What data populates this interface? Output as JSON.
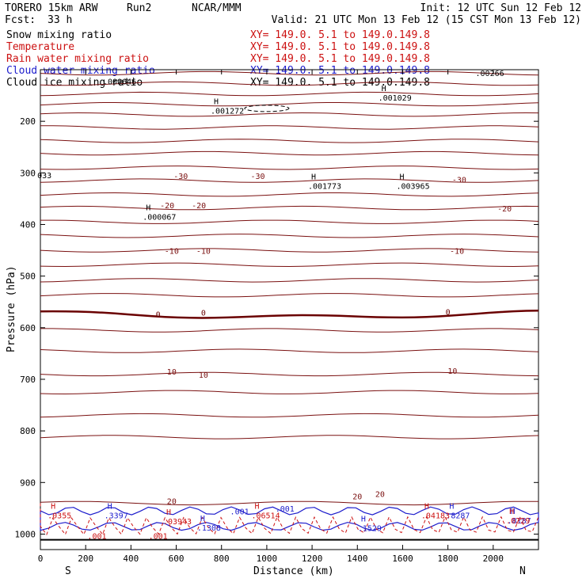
{
  "header": {
    "model": "TORERO  15km ARW",
    "run": "Run2",
    "org": "NCAR/MMM",
    "init": "Init: 12 UTC Sun 12 Feb 12",
    "fcst_label": "Fcst:",
    "fcst_value": "33 h",
    "valid": "Valid: 21 UTC Mon 13 Feb 12 (15 CST Mon 13 Feb 12)"
  },
  "colors": {
    "black": "#000000",
    "temperature": "#7a1010",
    "temperature_zero": "#6a0000",
    "rain": "#cc1111",
    "cloud_water": "#1c1ccc",
    "cloud_ice": "#000000"
  },
  "legend": [
    {
      "name": "Snow mixing ratio",
      "xy": "XY= 149.0.  5.1 to 149.0.149.8",
      "color": "#000000"
    },
    {
      "name": "Temperature",
      "xy": "XY= 149.0.  5.1 to 149.0.149.8",
      "color": "#cc1111"
    },
    {
      "name": "Rain water mixing ratio",
      "xy": "XY= 149.0.  5.1 to 149.0.149.8",
      "color": "#cc1111"
    },
    {
      "name": "Cloud water mixing ratio",
      "xy": "XY= 149.0.  5.1 to 149.0.149.8",
      "color": "#1c1ccc"
    },
    {
      "name": "Cloud ice mixing ratio",
      "xy": "XY= 149.0.  5.1 to 149.0.149.8",
      "color": "#000000"
    }
  ],
  "chart_data": {
    "type": "cross-section contour",
    "xlabel": "Distance (km)",
    "ylabel": "Pressure (hPa)",
    "xlim": [
      0,
      2200
    ],
    "ylim": [
      1030,
      100
    ],
    "xticks": [
      0,
      200,
      400,
      600,
      800,
      1000,
      1200,
      1400,
      1600,
      1800,
      2000
    ],
    "yticks": [
      200,
      300,
      400,
      500,
      600,
      700,
      800,
      900,
      1000
    ],
    "x_end_labels": {
      "left": "S",
      "right": "N"
    },
    "surface_pressure": 1011,
    "temperature_isotherms": [
      {
        "value": -50,
        "pressure": 107
      },
      {
        "value": -50,
        "pressure": 127
      },
      {
        "value": -45,
        "pressure": 147
      },
      {
        "value": -45,
        "pressure": 167
      },
      {
        "value": -40,
        "pressure": 187
      },
      {
        "value": -40,
        "pressure": 212
      },
      {
        "value": -35,
        "pressure": 238
      },
      {
        "value": -35,
        "pressure": 262
      },
      {
        "value": -30,
        "pressure": 290
      },
      {
        "value": -30,
        "pressure": 315,
        "labeled": true
      },
      {
        "value": -25,
        "pressure": 342
      },
      {
        "value": -20,
        "pressure": 368,
        "labeled": true
      },
      {
        "value": -15,
        "pressure": 395
      },
      {
        "value": -15,
        "pressure": 422
      },
      {
        "value": -10,
        "pressure": 450,
        "labeled": true
      },
      {
        "value": -5,
        "pressure": 478
      },
      {
        "value": -5,
        "pressure": 508
      },
      {
        "value": 0,
        "pressure": 537
      },
      {
        "value": 0,
        "pressure": 570,
        "labeled": true,
        "bold": true
      },
      {
        "value": 5,
        "pressure": 605
      },
      {
        "value": 5,
        "pressure": 645
      },
      {
        "value": 10,
        "pressure": 690,
        "labeled": true
      },
      {
        "value": 15,
        "pressure": 725
      },
      {
        "value": 15,
        "pressure": 770
      },
      {
        "value": 20,
        "pressure": 812
      },
      {
        "value": 20,
        "pressure": 940,
        "labeled": true
      }
    ],
    "contour_labels": [
      {
        "text": "-30",
        "x": 620,
        "p": 307,
        "color": "#7a1010"
      },
      {
        "text": "-30",
        "x": 960,
        "p": 307,
        "color": "#7a1010"
      },
      {
        "text": "-30",
        "x": 1850,
        "p": 314,
        "color": "#7a1010"
      },
      {
        "text": "-20",
        "x": 560,
        "p": 364,
        "color": "#7a1010"
      },
      {
        "text": "-20",
        "x": 700,
        "p": 364,
        "color": "#7a1010"
      },
      {
        "text": "-20",
        "x": 2050,
        "p": 370,
        "color": "#7a1010"
      },
      {
        "text": "-10",
        "x": 580,
        "p": 452,
        "color": "#7a1010"
      },
      {
        "text": "-10",
        "x": 720,
        "p": 452,
        "color": "#7a1010"
      },
      {
        "text": "-10",
        "x": 1840,
        "p": 452,
        "color": "#7a1010"
      },
      {
        "text": "0",
        "x": 520,
        "p": 575,
        "color": "#6a0000"
      },
      {
        "text": "0",
        "x": 720,
        "p": 572,
        "color": "#6a0000"
      },
      {
        "text": "0",
        "x": 1800,
        "p": 570,
        "color": "#6a0000"
      },
      {
        "text": "10",
        "x": 580,
        "p": 686,
        "color": "#7a1010"
      },
      {
        "text": "10",
        "x": 720,
        "p": 692,
        "color": "#7a1010"
      },
      {
        "text": "10",
        "x": 1820,
        "p": 685,
        "color": "#7a1010"
      },
      {
        "text": "20",
        "x": 580,
        "p": 937,
        "color": "#7a1010"
      },
      {
        "text": "20",
        "x": 1400,
        "p": 928,
        "color": "#7a1010"
      },
      {
        "text": "20",
        "x": 1500,
        "p": 923,
        "color": "#7a1010"
      },
      {
        "text": ".001",
        "x": 880,
        "p": 957,
        "color": "#1c1ccc"
      },
      {
        "text": ".001",
        "x": 1080,
        "p": 952,
        "color": "#1c1ccc"
      },
      {
        "text": ".001",
        "x": 250,
        "p": 1005,
        "color": "#cc1111"
      },
      {
        "text": ".001",
        "x": 520,
        "p": 1005,
        "color": "#cc1111"
      },
      {
        "text": ".000646",
        "x": 350,
        "p": 124,
        "color": "#000000"
      },
      {
        "text": "033",
        "x": 18,
        "p": 306,
        "color": "#000000"
      }
    ],
    "maxima": [
      {
        "text": ".00266",
        "x": 1950,
        "p": 109,
        "color": "#000000",
        "mark": false
      },
      {
        "text": ".001272",
        "x": 780,
        "p": 182,
        "color": "#000000"
      },
      {
        "text": ".001029",
        "x": 1520,
        "p": 157,
        "color": "#000000"
      },
      {
        "text": ".001773",
        "x": 1210,
        "p": 328,
        "color": "#000000"
      },
      {
        "text": ".003965",
        "x": 1600,
        "p": 328,
        "color": "#000000"
      },
      {
        "text": ".000067",
        "x": 480,
        "p": 388,
        "color": "#000000"
      },
      {
        "text": ".3397",
        "x": 310,
        "p": 966,
        "color": "#1c1ccc"
      },
      {
        "text": ".1308",
        "x": 720,
        "p": 990,
        "color": "#1c1ccc"
      },
      {
        "text": ".1529",
        "x": 1430,
        "p": 991,
        "color": "#1c1ccc"
      },
      {
        "text": ".8287",
        "x": 1820,
        "p": 966,
        "color": "#1c1ccc"
      },
      {
        "text": ".8187",
        "x": 2090,
        "p": 976,
        "color": "#1c1ccc"
      },
      {
        "text": ".0355",
        "x": 60,
        "p": 966,
        "color": "#cc1111"
      },
      {
        "text": ".03943",
        "x": 570,
        "p": 978,
        "color": "#cc1111"
      },
      {
        "text": ".06514",
        "x": 960,
        "p": 966,
        "color": "#cc1111"
      },
      {
        "text": ".04183",
        "x": 1710,
        "p": 966,
        "color": "#cc1111"
      },
      {
        "text": ".0229",
        "x": 2085,
        "p": 976,
        "color": "#cc1111"
      }
    ]
  }
}
